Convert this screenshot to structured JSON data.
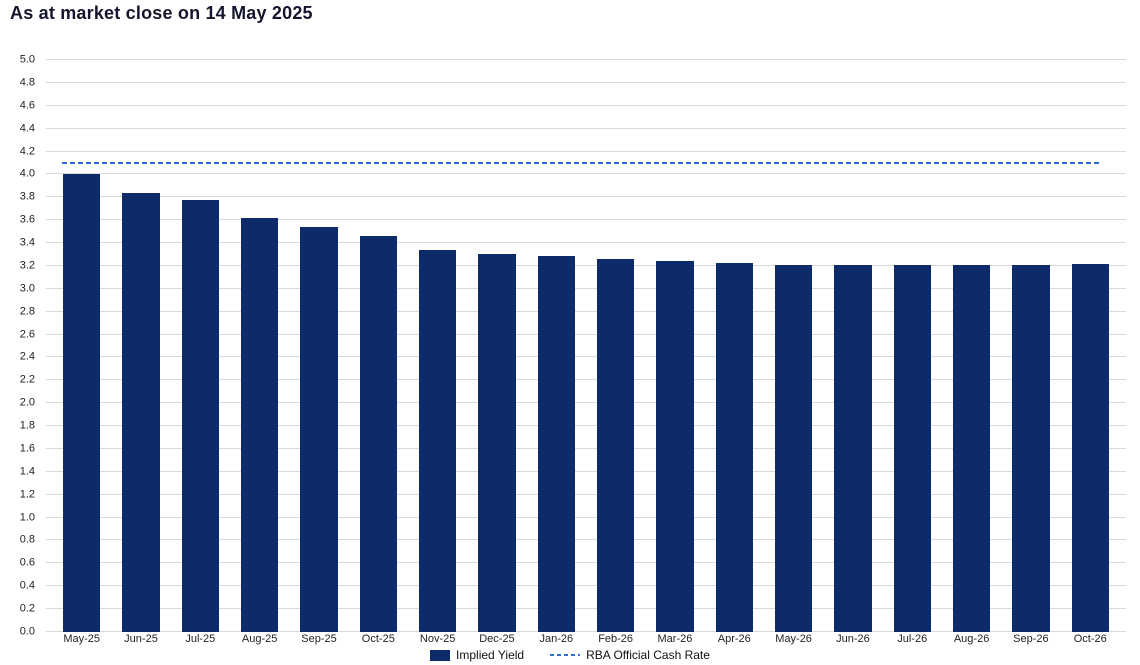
{
  "title": "As at market close on 14 May 2025",
  "legend": {
    "implied_yield": "Implied Yield",
    "cash_rate": "RBA Official Cash Rate"
  },
  "colors": {
    "bar": "#0d2b6b",
    "line": "#2f6fd0",
    "grid": "#d9d9d9",
    "text": "#222222",
    "title": "#15152e"
  },
  "chart_data": {
    "type": "bar",
    "title": "As at market close on 14 May 2025",
    "categories": [
      "May-25",
      "Jun-25",
      "Jul-25",
      "Aug-25",
      "Sep-25",
      "Oct-25",
      "Nov-25",
      "Dec-25",
      "Jan-26",
      "Feb-26",
      "Mar-26",
      "Apr-26",
      "May-26",
      "Jun-26",
      "Jul-26",
      "Aug-26",
      "Sep-26",
      "Oct-26"
    ],
    "series": [
      {
        "name": "Implied Yield",
        "type": "bar",
        "values": [
          4.0,
          3.84,
          3.78,
          3.62,
          3.54,
          3.46,
          3.34,
          3.3,
          3.29,
          3.26,
          3.24,
          3.23,
          3.21,
          3.21,
          3.21,
          3.21,
          3.21,
          3.22
        ]
      },
      {
        "name": "RBA Official Cash Rate",
        "type": "line",
        "value": 4.1
      }
    ],
    "xlabel": "",
    "ylabel": "",
    "ylim": [
      0.0,
      5.0
    ],
    "ytick_step": 0.2,
    "yticks": [
      0.0,
      0.2,
      0.4,
      0.6,
      0.8,
      1.0,
      1.2,
      1.4,
      1.6,
      1.8,
      2.0,
      2.2,
      2.4,
      2.6,
      2.8,
      3.0,
      3.2,
      3.4,
      3.6,
      3.8,
      4.0,
      4.2,
      4.4,
      4.6,
      4.8,
      5.0
    ],
    "grid": true,
    "legend_position": "bottom"
  }
}
